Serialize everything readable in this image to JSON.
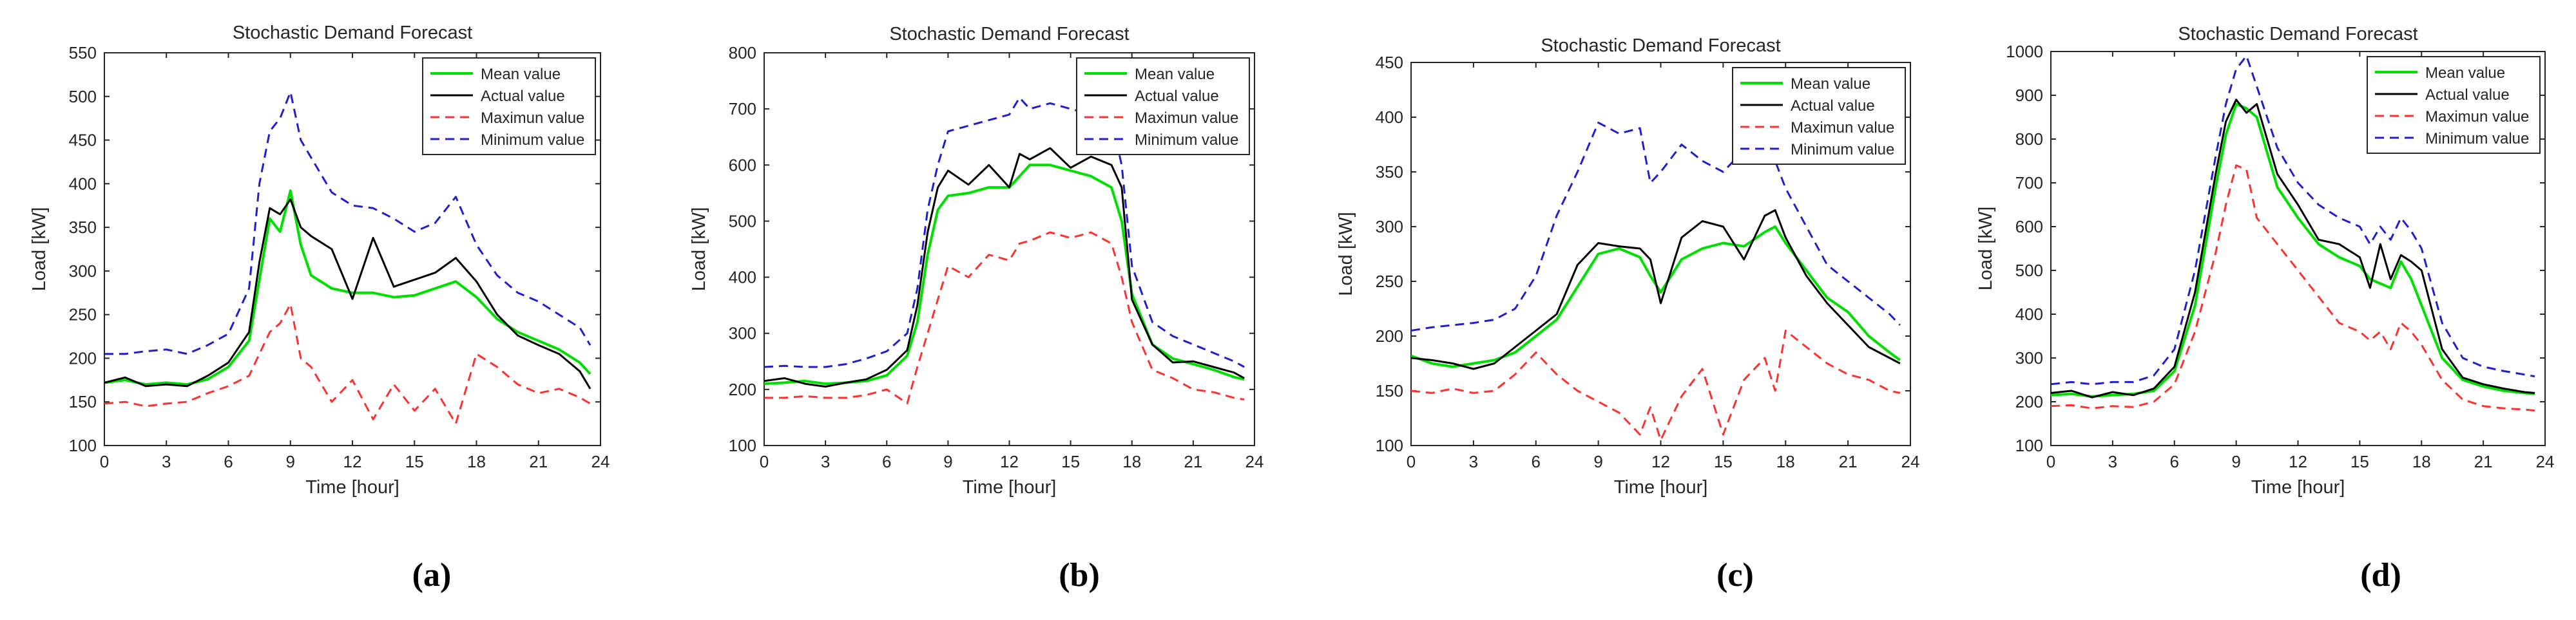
{
  "chart_data": [
    {
      "type": "line",
      "title": "Stochastic Demand Forecast",
      "xlabel": "Time [hour]",
      "ylabel": "Load [kW]",
      "caption": "(a)",
      "xlim": [
        0,
        24
      ],
      "ylim": [
        100,
        550
      ],
      "xticks": [
        0,
        3,
        6,
        9,
        12,
        15,
        18,
        21,
        24
      ],
      "yticks": [
        100,
        150,
        200,
        250,
        300,
        350,
        400,
        450,
        500,
        550
      ],
      "legend_position": "top-right",
      "x": [
        0,
        1,
        2,
        3,
        4,
        5,
        6,
        7,
        7.5,
        8,
        8.5,
        9,
        9.5,
        10,
        11,
        12,
        13,
        14,
        15,
        16,
        17,
        18,
        19,
        20,
        21,
        22,
        23,
        23.5
      ],
      "series": [
        {
          "name": "Mean value",
          "color": "#00e000",
          "dash": "solid",
          "values": [
            172,
            175,
            170,
            172,
            170,
            176,
            190,
            220,
            290,
            360,
            345,
            392,
            330,
            295,
            280,
            275,
            275,
            270,
            272,
            280,
            288,
            270,
            245,
            230,
            220,
            210,
            195,
            182
          ]
        },
        {
          "name": "Actual value",
          "color": "#000000",
          "dash": "solid",
          "values": [
            172,
            178,
            168,
            170,
            168,
            180,
            195,
            230,
            310,
            372,
            365,
            382,
            350,
            340,
            325,
            268,
            338,
            282,
            290,
            298,
            315,
            288,
            250,
            226,
            215,
            205,
            185,
            165
          ]
        },
        {
          "name": "Maximun value",
          "color": "#ff3030",
          "dash": "dashed",
          "values": [
            148,
            150,
            145,
            148,
            150,
            160,
            168,
            180,
            205,
            230,
            240,
            262,
            200,
            190,
            150,
            175,
            130,
            170,
            140,
            165,
            125,
            205,
            190,
            170,
            160,
            165,
            155,
            148
          ]
        },
        {
          "name": "Minimum value",
          "color": "#1f1fd0",
          "dash": "dashed",
          "values": [
            205,
            205,
            208,
            210,
            205,
            215,
            228,
            280,
            400,
            460,
            475,
            505,
            450,
            430,
            390,
            375,
            372,
            360,
            345,
            355,
            385,
            330,
            295,
            275,
            265,
            250,
            235,
            215
          ]
        }
      ]
    },
    {
      "type": "line",
      "title": "Stochastic Demand Forecast",
      "xlabel": "Time [hour]",
      "ylabel": "Load [kW]",
      "caption": "(b)",
      "xlim": [
        0,
        24
      ],
      "ylim": [
        100,
        800
      ],
      "xticks": [
        0,
        3,
        6,
        9,
        12,
        15,
        18,
        21,
        24
      ],
      "yticks": [
        100,
        200,
        300,
        400,
        500,
        600,
        700,
        800
      ],
      "legend_position": "top-right",
      "x": [
        0,
        1,
        2,
        3,
        4,
        5,
        6,
        7,
        7.5,
        8,
        8.5,
        9,
        10,
        11,
        12,
        12.5,
        13,
        14,
        15,
        16,
        17,
        17.5,
        18,
        19,
        20,
        21,
        22,
        23,
        23.5
      ],
      "series": [
        {
          "name": "Mean value",
          "color": "#00e000",
          "dash": "solid",
          "values": [
            210,
            212,
            215,
            210,
            212,
            215,
            225,
            260,
            320,
            440,
            520,
            545,
            550,
            560,
            560,
            580,
            600,
            600,
            590,
            580,
            560,
            500,
            370,
            280,
            255,
            245,
            235,
            222,
            218
          ]
        },
        {
          "name": "Actual value",
          "color": "#000000",
          "dash": "solid",
          "values": [
            215,
            220,
            210,
            205,
            212,
            218,
            235,
            270,
            350,
            480,
            560,
            590,
            565,
            600,
            560,
            620,
            610,
            630,
            595,
            615,
            600,
            560,
            360,
            280,
            248,
            250,
            240,
            230,
            220
          ]
        },
        {
          "name": "Maximun value",
          "color": "#ff3030",
          "dash": "dashed",
          "values": [
            185,
            185,
            188,
            185,
            185,
            190,
            200,
            175,
            240,
            300,
            360,
            420,
            400,
            440,
            430,
            460,
            465,
            480,
            470,
            480,
            460,
            400,
            320,
            235,
            220,
            200,
            195,
            185,
            182
          ]
        },
        {
          "name": "Minimum value",
          "color": "#1f1fd0",
          "dash": "dashed",
          "values": [
            240,
            242,
            240,
            240,
            245,
            255,
            268,
            300,
            380,
            520,
            600,
            660,
            670,
            680,
            690,
            720,
            700,
            710,
            700,
            690,
            680,
            600,
            420,
            320,
            295,
            280,
            265,
            250,
            240
          ]
        }
      ]
    },
    {
      "type": "line",
      "title": "Stochastic Demand Forecast",
      "xlabel": "Time [hour]",
      "ylabel": "Load [kW]",
      "caption": "(c)",
      "xlim": [
        0,
        24
      ],
      "ylim": [
        100,
        450
      ],
      "xticks": [
        0,
        3,
        6,
        9,
        12,
        15,
        18,
        21,
        24
      ],
      "yticks": [
        100,
        150,
        200,
        250,
        300,
        350,
        400,
        450
      ],
      "legend_position": "top-right",
      "x": [
        0,
        1,
        2,
        3,
        4,
        5,
        6,
        7,
        8,
        9,
        10,
        11,
        11.5,
        12,
        13,
        14,
        15,
        16,
        17,
        17.5,
        18,
        19,
        20,
        21,
        22,
        23,
        23.5
      ],
      "series": [
        {
          "name": "Mean value",
          "color": "#00e000",
          "dash": "solid",
          "values": [
            182,
            175,
            172,
            175,
            178,
            185,
            200,
            215,
            245,
            275,
            280,
            272,
            255,
            240,
            270,
            280,
            285,
            282,
            295,
            300,
            285,
            260,
            235,
            222,
            200,
            185,
            178
          ]
        },
        {
          "name": "Actual value",
          "color": "#000000",
          "dash": "solid",
          "values": [
            180,
            178,
            175,
            170,
            175,
            190,
            205,
            220,
            265,
            285,
            282,
            280,
            270,
            230,
            290,
            305,
            300,
            270,
            310,
            315,
            290,
            255,
            230,
            210,
            190,
            180,
            175
          ]
        },
        {
          "name": "Maximun value",
          "color": "#ff3030",
          "dash": "dashed",
          "values": [
            150,
            148,
            152,
            148,
            150,
            165,
            185,
            165,
            150,
            140,
            130,
            110,
            135,
            105,
            145,
            170,
            110,
            160,
            180,
            150,
            205,
            190,
            175,
            165,
            160,
            150,
            148
          ]
        },
        {
          "name": "Minimum value",
          "color": "#1f1fd0",
          "dash": "dashed",
          "values": [
            205,
            208,
            210,
            212,
            215,
            225,
            255,
            310,
            350,
            395,
            385,
            390,
            340,
            350,
            375,
            360,
            350,
            370,
            380,
            360,
            335,
            300,
            265,
            250,
            235,
            220,
            210
          ]
        }
      ]
    },
    {
      "type": "line",
      "title": "Stochastic Demand Forecast",
      "xlabel": "Time [hour]",
      "ylabel": "Load [kW]",
      "caption": "(d)",
      "xlim": [
        0,
        24
      ],
      "ylim": [
        100,
        1000
      ],
      "xticks": [
        0,
        3,
        6,
        9,
        12,
        15,
        18,
        21,
        24
      ],
      "yticks": [
        100,
        200,
        300,
        400,
        500,
        600,
        700,
        800,
        900,
        1000
      ],
      "legend_position": "top-right",
      "x": [
        0,
        1,
        2,
        3,
        4,
        5,
        6,
        7,
        8,
        8.5,
        9,
        9.5,
        10,
        11,
        12,
        13,
        14,
        15,
        15.5,
        16,
        16.5,
        17,
        17.5,
        18,
        19,
        20,
        21,
        22,
        23,
        23.5
      ],
      "series": [
        {
          "name": "Mean value",
          "color": "#00e000",
          "dash": "solid",
          "values": [
            215,
            218,
            212,
            215,
            218,
            225,
            270,
            420,
            690,
            810,
            880,
            870,
            850,
            690,
            620,
            560,
            530,
            510,
            480,
            470,
            460,
            520,
            480,
            420,
            300,
            250,
            235,
            225,
            220,
            218
          ]
        },
        {
          "name": "Actual value",
          "color": "#000000",
          "dash": "solid",
          "values": [
            220,
            225,
            210,
            222,
            215,
            230,
            280,
            450,
            720,
            840,
            890,
            860,
            880,
            720,
            650,
            570,
            560,
            530,
            460,
            560,
            480,
            535,
            520,
            500,
            320,
            255,
            240,
            230,
            222,
            220
          ]
        },
        {
          "name": "Maximun value",
          "color": "#ff3030",
          "dash": "dashed",
          "values": [
            190,
            192,
            185,
            190,
            188,
            200,
            240,
            360,
            540,
            650,
            740,
            730,
            620,
            560,
            500,
            440,
            380,
            360,
            340,
            360,
            320,
            380,
            360,
            330,
            250,
            205,
            190,
            185,
            182,
            180
          ]
        },
        {
          "name": "Minimum value",
          "color": "#1f1fd0",
          "dash": "dashed",
          "values": [
            240,
            245,
            240,
            245,
            245,
            260,
            320,
            500,
            760,
            880,
            960,
            990,
            920,
            780,
            700,
            650,
            620,
            600,
            560,
            600,
            570,
            620,
            590,
            550,
            380,
            300,
            280,
            270,
            262,
            258
          ]
        }
      ]
    }
  ]
}
